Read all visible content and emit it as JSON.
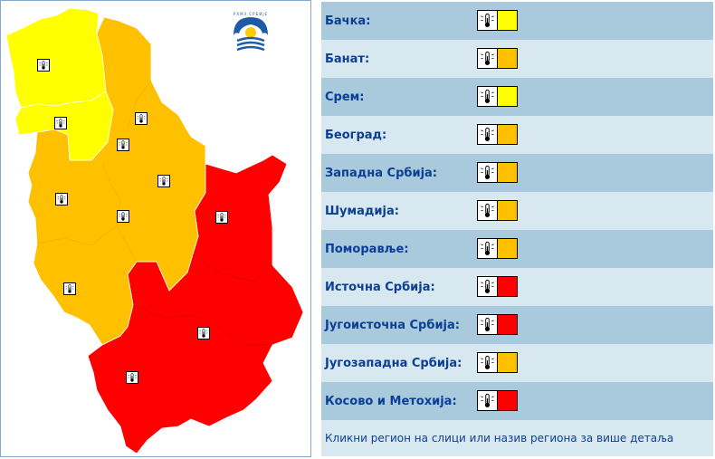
{
  "colors": {
    "yellow": "#ffff00",
    "orange": "#ffc000",
    "red": "#ff0000"
  },
  "icons": {
    "region_warning": "thermometer-icon",
    "logo": "rhmz-logo"
  },
  "logo_text": "РХМЗ СРБИЈЕ",
  "regions": [
    {
      "label": "Бачка:",
      "level": "yellow"
    },
    {
      "label": "Банат:",
      "level": "orange"
    },
    {
      "label": "Срем:",
      "level": "yellow"
    },
    {
      "label": "Београд:",
      "level": "orange"
    },
    {
      "label": "Западна Србија:",
      "level": "orange"
    },
    {
      "label": "Шумадија:",
      "level": "orange"
    },
    {
      "label": "Поморавље:",
      "level": "orange"
    },
    {
      "label": "Источна Србија:",
      "level": "red"
    },
    {
      "label": "Југоисточна Србија:",
      "level": "red"
    },
    {
      "label": "Југозападна Србија:",
      "level": "orange"
    },
    {
      "label": "Косово и Метохија:",
      "level": "red"
    }
  ],
  "footer_note": "Кликни регион на слици или назив региона за више детаља"
}
